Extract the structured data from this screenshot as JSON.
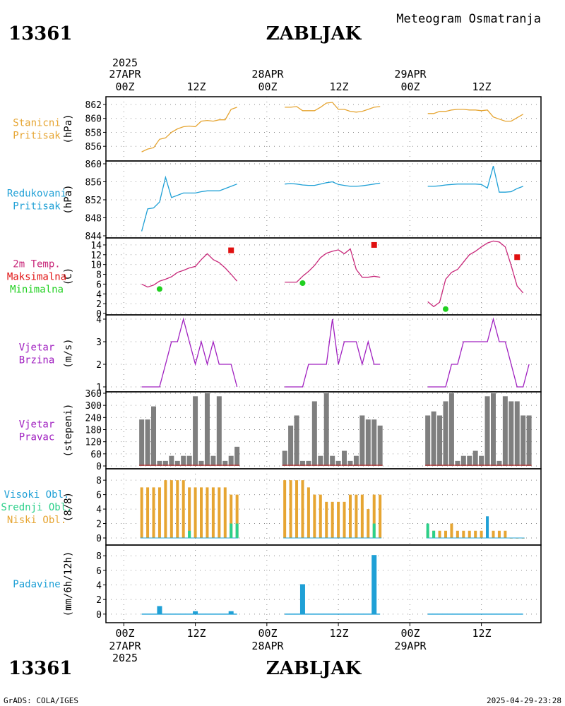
{
  "header": {
    "station_id": "13361",
    "station_name": "ZABLJAK",
    "product": "Meteogram Osmatranja"
  },
  "footer": {
    "credit": "GrADS: COLA/IGES",
    "timestamp": "2025-04-29-23:28"
  },
  "time_axis": {
    "year": "2025",
    "day_labels": [
      "27APR",
      "28APR",
      "29APR"
    ],
    "tick_labels": [
      "00Z",
      "12Z",
      "00Z",
      "12Z",
      "00Z",
      "12Z"
    ],
    "ticks_hours": [
      0,
      12,
      24,
      36,
      48,
      60
    ],
    "range_hours": [
      -3,
      70
    ]
  },
  "colors": {
    "pressure": "#e6a532",
    "reduced": "#1fa0d6",
    "temp": "#c8287a",
    "tmax": "#e01010",
    "tmin": "#20d020",
    "wind": "#a020c0",
    "winddir_bar": "#7f7f7f",
    "winddir_base": "#c03030",
    "cloud_high": "#1fa0d6",
    "cloud_mid": "#2bd08a",
    "cloud_low": "#e6a532",
    "precip": "#1fa0d6"
  },
  "chart_data": [
    {
      "id": "stanicni_pritisak",
      "type": "line",
      "labels": [
        "Stanicni",
        "Pritisak"
      ],
      "ylabel": "(hPa)",
      "ylim": [
        854.5,
        862.5
      ],
      "yticks": [
        856,
        858,
        860,
        862
      ],
      "series": [
        {
          "x": [
            3,
            4,
            5,
            6,
            7,
            8,
            9,
            10,
            11,
            12,
            13,
            14,
            15,
            16,
            17,
            18,
            19
          ],
          "y": [
            855.2,
            855.6,
            855.8,
            857.0,
            857.2,
            858.0,
            858.5,
            858.8,
            858.9,
            858.8,
            859.6,
            859.7,
            859.6,
            859.8,
            859.8,
            861.3,
            861.6
          ]
        },
        {
          "x": [
            27,
            28,
            29,
            30,
            31,
            32,
            33,
            34,
            35,
            36,
            37,
            38,
            39,
            40,
            41,
            42,
            43
          ],
          "y": [
            861.6,
            861.6,
            861.7,
            861.1,
            861.1,
            861.1,
            861.6,
            862.2,
            862.3,
            861.3,
            861.3,
            861.0,
            860.9,
            861.0,
            861.3,
            861.6,
            861.7
          ]
        },
        {
          "x": [
            51,
            52,
            53,
            54,
            55,
            56,
            57,
            58,
            59,
            60,
            61,
            62,
            63,
            64,
            65,
            66,
            67
          ],
          "y": [
            860.7,
            860.7,
            861.0,
            861.0,
            861.2,
            861.3,
            861.3,
            861.2,
            861.2,
            861.1,
            861.2,
            860.2,
            859.9,
            859.6,
            859.6,
            860.1,
            860.6
          ]
        }
      ]
    },
    {
      "id": "redukovani_pritisak",
      "type": "line",
      "labels": [
        "Redukovani",
        "Pritisak"
      ],
      "ylabel": "(hPa)",
      "ylim": [
        844,
        860
      ],
      "yticks": [
        844,
        848,
        852,
        856,
        860
      ],
      "series": [
        {
          "x": [
            3,
            4,
            5,
            6,
            7,
            8,
            9,
            10,
            11,
            12,
            13,
            14,
            15,
            16,
            17,
            18,
            19
          ],
          "y": [
            845.0,
            850.0,
            850.2,
            851.5,
            857.0,
            852.5,
            853.0,
            853.5,
            853.5,
            853.5,
            853.8,
            854.0,
            854.0,
            854.0,
            854.5,
            855.0,
            855.5
          ]
        },
        {
          "x": [
            27,
            28,
            29,
            30,
            31,
            32,
            33,
            34,
            35,
            36,
            37,
            38,
            39,
            40,
            41,
            42,
            43
          ],
          "y": [
            855.5,
            855.6,
            855.5,
            855.3,
            855.2,
            855.2,
            855.5,
            855.8,
            856.0,
            855.4,
            855.2,
            855.0,
            855.0,
            855.1,
            855.3,
            855.5,
            855.7
          ]
        },
        {
          "x": [
            51,
            52,
            53,
            54,
            55,
            56,
            57,
            58,
            59,
            60,
            61,
            62,
            63,
            64,
            65,
            66,
            67
          ],
          "y": [
            855.0,
            855.0,
            855.1,
            855.3,
            855.4,
            855.5,
            855.5,
            855.5,
            855.5,
            855.4,
            854.6,
            859.5,
            853.7,
            853.7,
            853.8,
            854.5,
            855.0
          ]
        }
      ]
    },
    {
      "id": "temperatura",
      "type": "line",
      "labels": [
        "2m Temp.",
        "Maksimalna",
        "Minimalna"
      ],
      "ylabel": "(C)",
      "ylim": [
        0,
        15
      ],
      "yticks": [
        0,
        2,
        4,
        6,
        8,
        10,
        12,
        14
      ],
      "series": [
        {
          "x": [
            3,
            4,
            5,
            6,
            7,
            8,
            9,
            10,
            11,
            12,
            13,
            14,
            15,
            16,
            17,
            18,
            19
          ],
          "y": [
            6.0,
            5.4,
            5.8,
            6.6,
            7.0,
            7.5,
            8.4,
            8.8,
            9.3,
            9.6,
            11.0,
            12.2,
            11.0,
            10.4,
            9.3,
            8.0,
            6.6
          ]
        },
        {
          "x": [
            27,
            28,
            29,
            30,
            31,
            32,
            33,
            34,
            35,
            36,
            37,
            38,
            39,
            40,
            41,
            42,
            43
          ],
          "y": [
            6.4,
            6.4,
            6.4,
            7.6,
            8.6,
            9.8,
            11.4,
            12.3,
            12.7,
            13.0,
            12.2,
            13.2,
            9.0,
            7.4,
            7.4,
            7.6,
            7.4
          ]
        },
        {
          "x": [
            51,
            52,
            53,
            54,
            55,
            56,
            57,
            58,
            59,
            60,
            61,
            62,
            63,
            64,
            65,
            66,
            67
          ],
          "y": [
            2.4,
            1.4,
            2.3,
            7.0,
            8.4,
            9.0,
            10.5,
            12.0,
            12.7,
            13.6,
            14.4,
            14.8,
            14.6,
            13.6,
            9.8,
            5.6,
            4.2
          ]
        }
      ],
      "tmax": {
        "x": [
          18,
          42,
          66
        ],
        "y": [
          12.9,
          14.0,
          11.5
        ]
      },
      "tmin": {
        "x": [
          6,
          30,
          54
        ],
        "y": [
          5.0,
          6.2,
          0.9
        ]
      }
    },
    {
      "id": "vjetar_brzina",
      "type": "line",
      "labels": [
        "Vjetar",
        "Brzina"
      ],
      "ylabel": "(m/s)",
      "ylim": [
        1,
        4
      ],
      "yticks": [
        1,
        2,
        3,
        4
      ],
      "series": [
        {
          "x": [
            3,
            4,
            5,
            6,
            7,
            8,
            9,
            10,
            11,
            12,
            13,
            14,
            15,
            16,
            17,
            18,
            19
          ],
          "y": [
            1,
            1,
            1,
            1,
            2,
            3,
            3,
            4,
            3,
            2,
            3,
            2,
            3,
            2,
            2,
            2,
            1
          ]
        },
        {
          "x": [
            27,
            28,
            29,
            30,
            31,
            32,
            33,
            34,
            35,
            36,
            37,
            38,
            39,
            40,
            41,
            42,
            43
          ],
          "y": [
            1,
            1,
            1,
            1,
            2,
            2,
            2,
            2,
            4,
            2,
            3,
            3,
            3,
            2,
            3,
            2,
            2
          ]
        },
        {
          "x": [
            51,
            52,
            53,
            54,
            55,
            56,
            57,
            58,
            59,
            60,
            61,
            62,
            63,
            64,
            65,
            66,
            67
          ],
          "y": [
            1,
            1,
            1,
            1,
            2,
            2,
            3,
            3,
            3,
            3,
            3,
            4,
            3,
            3,
            2,
            1,
            1
          ]
        }
      ],
      "extra_last_y": 2
    },
    {
      "id": "vjetar_pravac",
      "type": "bar",
      "labels": [
        "Vjetar",
        "Pravac"
      ],
      "ylabel": "(stepeni)",
      "ylim": [
        0,
        360
      ],
      "yticks": [
        0,
        60,
        120,
        180,
        240,
        300,
        360
      ],
      "bars": [
        {
          "x": [
            3,
            4,
            5,
            6,
            7,
            8,
            9,
            10,
            11,
            12,
            13,
            14,
            15,
            16,
            17,
            18,
            19
          ],
          "y": [
            230,
            230,
            295,
            25,
            25,
            50,
            25,
            50,
            50,
            345,
            25,
            360,
            50,
            345,
            25,
            50,
            95
          ]
        },
        {
          "x": [
            27,
            28,
            29,
            30,
            31,
            32,
            33,
            34,
            35,
            36,
            37,
            38,
            39,
            40,
            41,
            42,
            43
          ],
          "y": [
            75,
            200,
            250,
            25,
            25,
            320,
            50,
            360,
            50,
            25,
            75,
            25,
            50,
            250,
            230,
            230,
            200
          ]
        },
        {
          "x": [
            51,
            52,
            53,
            54,
            55,
            56,
            57,
            58,
            59,
            60,
            61,
            62,
            63,
            64,
            65,
            66,
            67
          ],
          "y": [
            250,
            270,
            250,
            320,
            360,
            25,
            50,
            50,
            75,
            50,
            345,
            360,
            25,
            345,
            320,
            320,
            250
          ]
        }
      ],
      "extra_last_y": 250
    },
    {
      "id": "oblacnost",
      "type": "bar",
      "labels": [
        "Visoki Obl.",
        "Srednji Obl.",
        "Niski Obl."
      ],
      "ylabel": "(8/8)",
      "ylim": [
        0,
        8.6
      ],
      "yticks": [
        0,
        2,
        4,
        6,
        8
      ],
      "low": [
        {
          "x": [
            3,
            4,
            5,
            6,
            7,
            8,
            9,
            10,
            11,
            12,
            13,
            14,
            15,
            16,
            17,
            18,
            19
          ],
          "y": [
            7,
            7,
            7,
            7,
            8,
            8,
            8,
            8,
            7,
            7,
            7,
            7,
            7,
            7,
            7,
            6,
            6
          ]
        },
        {
          "x": [
            27,
            28,
            29,
            30,
            31,
            32,
            33,
            34,
            35,
            36,
            37,
            38,
            39,
            40,
            41,
            42,
            43
          ],
          "y": [
            8,
            8,
            8,
            8,
            7,
            6,
            6,
            5,
            5,
            5,
            5,
            6,
            6,
            6,
            4,
            6,
            6
          ]
        },
        {
          "x": [
            51,
            52,
            53,
            54,
            55,
            56,
            57,
            58,
            59,
            60,
            61,
            62,
            63,
            64,
            65,
            66,
            67
          ],
          "y": [
            1,
            1,
            1,
            1,
            2,
            1,
            1,
            1,
            1,
            1,
            1,
            1,
            1,
            1,
            0,
            0,
            0
          ]
        }
      ],
      "mid": {
        "x": [
          11,
          18,
          19,
          42,
          51,
          52
        ],
        "y": [
          1,
          2,
          2,
          2,
          2,
          1
        ]
      },
      "high": {
        "x": [
          61
        ],
        "y": [
          3
        ]
      }
    },
    {
      "id": "padavine",
      "type": "bar",
      "labels": [
        "Padavine"
      ],
      "ylabel": "(mm/6h/12h)",
      "ylim": [
        -0.5,
        8.6
      ],
      "yticks": [
        0,
        2,
        4,
        6,
        8
      ],
      "bars": {
        "x": [
          6,
          12,
          18,
          30,
          42
        ],
        "y": [
          1.1,
          0.4,
          0.4,
          4.1,
          8.1
        ]
      }
    }
  ]
}
